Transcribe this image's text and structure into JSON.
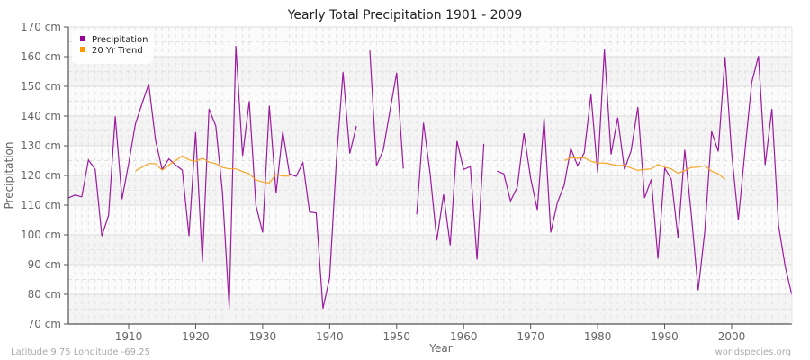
{
  "header": {
    "title": "Yearly Total Precipitation 1901 - 2009"
  },
  "footer": {
    "location": "Latitude 9.75 Longitude -69.25",
    "source": "worldspecies.org"
  },
  "legend": {
    "items": [
      {
        "label": "Precipitation",
        "color": "#990099"
      },
      {
        "label": "20 Yr Trend",
        "color": "#ff9900"
      }
    ]
  },
  "colors": {
    "precip": "#9b1a9f",
    "trend": "#f5a623",
    "band_dark": "#f4f4f4",
    "band_light": "#fbfbfb",
    "grid": "#e2e2e2",
    "axis": "#555555"
  },
  "chart_data": {
    "type": "line",
    "title": "Yearly Total Precipitation 1901 - 2009",
    "xlabel": "Year",
    "ylabel": "Precipitation",
    "xlim": [
      1901,
      2009
    ],
    "ylim": [
      70,
      170
    ],
    "x_ticks": [
      1910,
      1920,
      1930,
      1940,
      1950,
      1960,
      1970,
      1980,
      1990,
      2000
    ],
    "y_ticks": [
      "70 cm",
      "80 cm",
      "90 cm",
      "100 cm",
      "110 cm",
      "120 cm",
      "130 cm",
      "140 cm",
      "150 cm",
      "160 cm",
      "170 cm"
    ],
    "y_tick_values": [
      70,
      80,
      90,
      100,
      110,
      120,
      130,
      140,
      150,
      160,
      170
    ],
    "grid": true,
    "legend_position": "top-left",
    "series": [
      {
        "name": "Precipitation",
        "color": "#990099",
        "start_year": 1901,
        "values": [
          112.4,
          113.4,
          112.8,
          125.2,
          122.0,
          99.6,
          106.6,
          139.9,
          112.0,
          124.0,
          137.2,
          144.2,
          150.8,
          132.0,
          122.0,
          125.6,
          123.5,
          121.8,
          99.6,
          134.6,
          91.0,
          142.4,
          136.7,
          114.5,
          75.5,
          163.6,
          126.6,
          145.0,
          109.9,
          100.8,
          143.5,
          114.0,
          134.8,
          120.5,
          119.7,
          124.3,
          107.7,
          107.4,
          75.2,
          85.6,
          125.0,
          154.8,
          127.4,
          136.7,
          null,
          162.1,
          123.3,
          128.6,
          141.7,
          154.6,
          122.3,
          null,
          106.9,
          137.7,
          120.5,
          98.1,
          113.6,
          96.5,
          131.6,
          122.0,
          123.0,
          91.7,
          130.6,
          null,
          121.5,
          120.5,
          111.4,
          116.0,
          134.2,
          119.0,
          108.4,
          139.3,
          100.8,
          110.9,
          116.7,
          129.1,
          123.3,
          127.6,
          147.3,
          121.0,
          162.4,
          127.1,
          139.5,
          122.0,
          128.3,
          143.0,
          112.4,
          118.7,
          92.0,
          122.5,
          118.7,
          99.1,
          128.6,
          106.4,
          81.4,
          101.3,
          134.8,
          128.1,
          159.9,
          127.6,
          105.0,
          128.6,
          151.3,
          160.2,
          123.5,
          142.4,
          103.1,
          89.2,
          79.6
        ]
      },
      {
        "name": "20 Yr Trend",
        "color": "#ff9900",
        "start_year": 1901,
        "values": [
          null,
          null,
          null,
          null,
          null,
          null,
          null,
          null,
          null,
          null,
          121.5,
          122.8,
          124.0,
          124.0,
          121.8,
          123.5,
          125.0,
          126.6,
          125.2,
          124.8,
          125.8,
          124.5,
          124.0,
          122.7,
          122.2,
          122.2,
          121.3,
          120.5,
          118.5,
          117.8,
          117.5,
          120.3,
          119.8,
          119.8,
          null,
          null,
          null,
          null,
          null,
          null,
          null,
          null,
          null,
          null,
          null,
          null,
          null,
          null,
          null,
          null,
          null,
          null,
          null,
          null,
          null,
          null,
          null,
          null,
          null,
          null,
          null,
          null,
          null,
          null,
          null,
          null,
          null,
          null,
          null,
          null,
          null,
          null,
          null,
          null,
          125.0,
          126.0,
          125.8,
          126.0,
          124.8,
          124.2,
          124.2,
          123.8,
          123.3,
          123.5,
          122.5,
          121.7,
          122.0,
          122.2,
          123.7,
          122.8,
          122.2,
          120.7,
          121.7,
          122.7,
          122.8,
          123.3,
          121.5,
          120.5,
          118.7,
          null,
          null,
          null,
          null,
          null,
          null,
          null,
          null,
          null,
          null
        ]
      }
    ]
  }
}
